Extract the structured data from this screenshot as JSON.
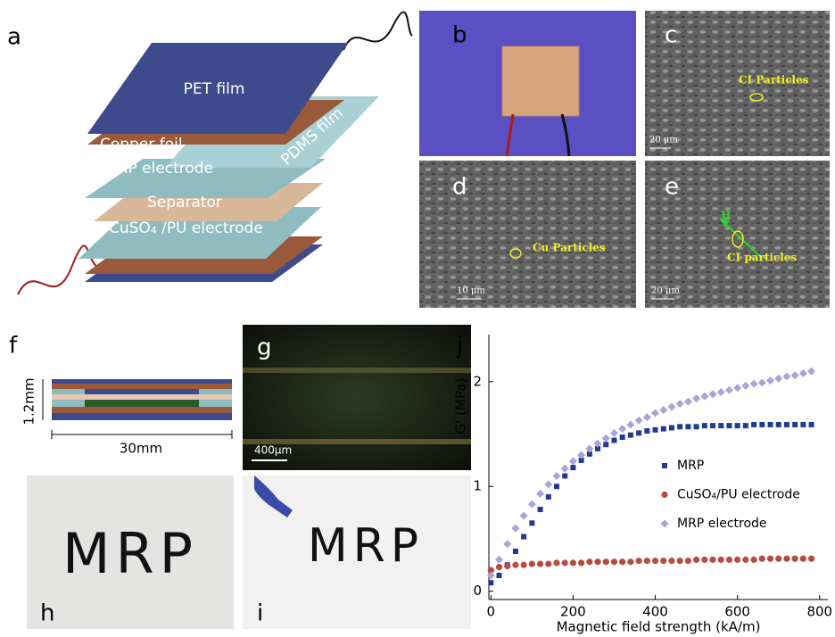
{
  "panels": {
    "a": {
      "label": "a",
      "layers": [
        "PET film",
        "Copper foil",
        "MRP electrode",
        "PDMS film",
        "Separator",
        "CuSO₄ /PU electrode"
      ]
    },
    "b": {
      "label": "b"
    },
    "c": {
      "label": "c",
      "annotation": "CI Particles",
      "scale": "20 μm"
    },
    "d": {
      "label": "d",
      "annotation": "Cu Particles",
      "scale": "10 μm"
    },
    "e": {
      "label": "e",
      "field": "H",
      "annotation": "CI particles",
      "scale": "20 μm"
    },
    "f": {
      "label": "f",
      "thickness": "1.2mm",
      "width": "30mm"
    },
    "g": {
      "label": "g",
      "scale": "400μm"
    },
    "h": {
      "label": "h",
      "text": "MRP"
    },
    "i": {
      "label": "i",
      "text": "MRP"
    },
    "j": {
      "label": "j"
    }
  },
  "chart_data": {
    "type": "scatter",
    "xlabel": "Magnetic field strength (kA/m)",
    "ylabel": "G' (MPa)",
    "x": [
      0,
      20,
      40,
      60,
      80,
      100,
      120,
      140,
      160,
      180,
      200,
      220,
      240,
      260,
      280,
      300,
      320,
      340,
      360,
      380,
      400,
      420,
      440,
      460,
      480,
      500,
      520,
      540,
      560,
      580,
      600,
      620,
      640,
      660,
      680,
      700,
      720,
      740,
      760,
      780
    ],
    "series": [
      {
        "name": "MRP",
        "color": "#1f3a93",
        "marker": "square",
        "values": [
          0.08,
          0.15,
          0.25,
          0.38,
          0.52,
          0.65,
          0.78,
          0.9,
          1.0,
          1.1,
          1.18,
          1.25,
          1.31,
          1.36,
          1.4,
          1.44,
          1.47,
          1.49,
          1.51,
          1.53,
          1.54,
          1.55,
          1.56,
          1.57,
          1.57,
          1.57,
          1.58,
          1.58,
          1.58,
          1.58,
          1.58,
          1.58,
          1.59,
          1.59,
          1.59,
          1.59,
          1.59,
          1.59,
          1.59,
          1.59
        ]
      },
      {
        "name": "CuSO₄/PU electrode",
        "color": "#b84a3e",
        "marker": "circle",
        "values": [
          0.2,
          0.23,
          0.24,
          0.25,
          0.25,
          0.26,
          0.26,
          0.26,
          0.27,
          0.27,
          0.27,
          0.27,
          0.28,
          0.28,
          0.28,
          0.28,
          0.28,
          0.28,
          0.29,
          0.29,
          0.29,
          0.29,
          0.29,
          0.29,
          0.29,
          0.3,
          0.3,
          0.3,
          0.3,
          0.3,
          0.3,
          0.3,
          0.3,
          0.31,
          0.31,
          0.31,
          0.31,
          0.31,
          0.31,
          0.31
        ]
      },
      {
        "name": "MRP electrode",
        "color": "#a8a3d8",
        "marker": "diamond",
        "values": [
          0.15,
          0.3,
          0.45,
          0.6,
          0.72,
          0.83,
          0.93,
          1.02,
          1.1,
          1.17,
          1.24,
          1.3,
          1.36,
          1.41,
          1.46,
          1.51,
          1.55,
          1.59,
          1.63,
          1.66,
          1.7,
          1.73,
          1.76,
          1.79,
          1.81,
          1.84,
          1.86,
          1.88,
          1.9,
          1.92,
          1.94,
          1.96,
          1.98,
          1.99,
          2.01,
          2.03,
          2.05,
          2.06,
          2.08,
          2.1
        ]
      }
    ],
    "xlim": [
      -5,
      820
    ],
    "ylim": [
      -0.08,
      2.45
    ],
    "xticks": [
      0,
      200,
      400,
      600,
      800
    ],
    "yticks": [
      0,
      1,
      2
    ],
    "legend": "right"
  }
}
